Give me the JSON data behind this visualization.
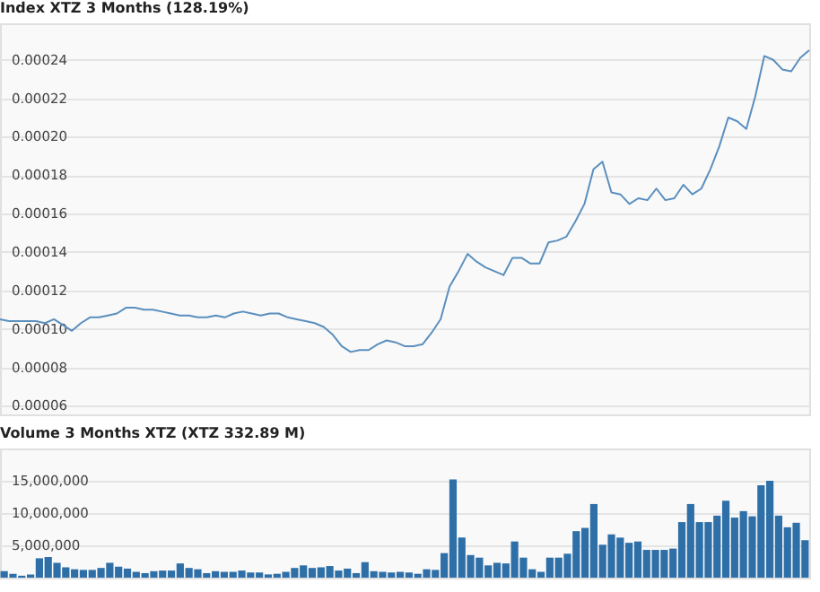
{
  "chart_data": [
    {
      "type": "line",
      "title": "Index XTZ 3 Months (128.19%)",
      "color": "#5b8fbe",
      "categories": [
        null,
        null,
        null,
        null,
        null,
        null,
        null,
        null,
        null,
        null,
        null,
        null,
        null,
        null,
        null,
        null,
        null,
        null,
        null,
        null,
        null,
        null,
        null,
        null,
        null,
        null,
        null,
        null,
        null,
        null,
        null,
        null,
        null,
        null,
        null,
        null,
        null,
        null,
        null,
        null,
        null,
        null,
        null,
        null,
        null,
        null,
        null,
        null,
        null,
        null,
        null,
        null,
        null,
        null,
        null,
        null,
        null,
        null,
        null,
        null,
        null,
        null,
        null,
        null,
        null,
        null,
        null,
        null,
        null,
        null,
        null,
        null,
        null,
        null,
        null,
        null,
        null,
        null,
        null,
        null,
        null,
        null,
        null,
        null,
        null,
        null,
        null,
        null,
        null,
        null,
        null
      ],
      "values": [
        0.000105,
        0.000104,
        0.000104,
        0.000104,
        0.000104,
        0.000103,
        0.000105,
        0.000102,
        9.9e-05,
        0.000103,
        0.000106,
        0.000106,
        0.000107,
        0.000108,
        0.000111,
        0.000111,
        0.00011,
        0.00011,
        0.000109,
        0.000108,
        0.000107,
        0.000107,
        0.000106,
        0.000106,
        0.000107,
        0.000106,
        0.000108,
        0.000109,
        0.000108,
        0.000107,
        0.000108,
        0.000108,
        0.000106,
        0.000105,
        0.000104,
        0.000103,
        0.000101,
        9.7e-05,
        9.1e-05,
        8.8e-05,
        8.9e-05,
        8.9e-05,
        9.2e-05,
        9.4e-05,
        9.3e-05,
        9.1e-05,
        9.1e-05,
        9.2e-05,
        9.8e-05,
        0.000105,
        0.000122,
        0.00013,
        0.000139,
        0.000135,
        0.000132,
        0.00013,
        0.000128,
        0.000137,
        0.000137,
        0.000134,
        0.000134,
        0.000145,
        0.000146,
        0.000148,
        0.000156,
        0.000165,
        0.000183,
        0.000187,
        0.000171,
        0.00017,
        0.000165,
        0.000168,
        0.000167,
        0.000173,
        0.000167,
        0.000168,
        0.000175,
        0.00017,
        0.000173,
        0.000183,
        0.000195,
        0.00021,
        0.000208,
        0.000204,
        0.000221,
        0.000242,
        0.00024,
        0.000235,
        0.000234,
        0.000241,
        0.000245
      ],
      "ylim": [
        5.55e-05,
        0.000259
      ],
      "yticks": [
        {
          "value": 6e-05,
          "label": "0.00006"
        },
        {
          "value": 8e-05,
          "label": "0.00008"
        },
        {
          "value": 0.0001,
          "label": "0.00010"
        },
        {
          "value": 0.00012,
          "label": "0.00012"
        },
        {
          "value": 0.00014,
          "label": "0.00014"
        },
        {
          "value": 0.00016,
          "label": "0.00016"
        },
        {
          "value": 0.00018,
          "label": "0.00018"
        },
        {
          "value": 0.0002,
          "label": "0.00020"
        },
        {
          "value": 0.00022,
          "label": "0.00022"
        },
        {
          "value": 0.00024,
          "label": "0.00024"
        }
      ],
      "grid": "y"
    },
    {
      "type": "bar",
      "title": "Volume 3 Months XTZ (XTZ 332.89 M)",
      "color": "#2e6fa7",
      "categories": [
        null,
        null,
        null,
        null,
        null,
        null,
        null,
        null,
        null,
        null,
        null,
        null,
        null,
        null,
        null,
        null,
        null,
        null,
        null,
        null,
        null,
        null,
        null,
        null,
        null,
        null,
        null,
        null,
        null,
        null,
        null,
        null,
        null,
        null,
        null,
        null,
        null,
        null,
        null,
        null,
        null,
        null,
        null,
        null,
        null,
        null,
        null,
        null,
        null,
        null,
        null,
        null,
        null,
        null,
        null,
        null,
        null,
        null,
        null,
        null,
        null,
        null,
        null,
        null,
        null,
        null,
        null,
        null,
        null,
        null,
        null,
        null,
        null,
        null,
        null,
        null,
        null,
        null,
        null,
        null,
        null,
        null,
        null,
        null,
        null,
        null,
        null,
        null,
        null,
        null,
        null,
        null
      ],
      "values": [
        1000000,
        600000,
        300000,
        500000,
        3000000,
        3200000,
        2300000,
        1600000,
        1300000,
        1200000,
        1200000,
        1500000,
        2300000,
        1700000,
        1400000,
        900000,
        700000,
        1000000,
        1100000,
        1100000,
        2200000,
        1500000,
        1300000,
        700000,
        1000000,
        900000,
        900000,
        1100000,
        800000,
        800000,
        500000,
        600000,
        900000,
        1500000,
        1900000,
        1500000,
        1600000,
        1800000,
        1100000,
        1400000,
        700000,
        2400000,
        1000000,
        900000,
        800000,
        900000,
        800000,
        600000,
        1300000,
        1200000,
        3800000,
        15200000,
        6200000,
        3500000,
        3100000,
        1900000,
        2300000,
        2200000,
        5600000,
        3100000,
        1300000,
        900000,
        3100000,
        3100000,
        3700000,
        7200000,
        7700000,
        11400000,
        5100000,
        6700000,
        6200000,
        5400000,
        5600000,
        4300000,
        4300000,
        4300000,
        4500000,
        8600000,
        11400000,
        8600000,
        8600000,
        9600000,
        11900000,
        9300000,
        10300000,
        9500000,
        14300000,
        15000000,
        9600000,
        7800000,
        8500000,
        5800000
      ],
      "ylim": [
        0,
        20000000
      ],
      "yticks": [
        {
          "value": 5000000,
          "label": "5,000,000"
        },
        {
          "value": 10000000,
          "label": "10,000,000"
        },
        {
          "value": 15000000,
          "label": "15,000,000"
        }
      ],
      "grid": "y"
    }
  ]
}
